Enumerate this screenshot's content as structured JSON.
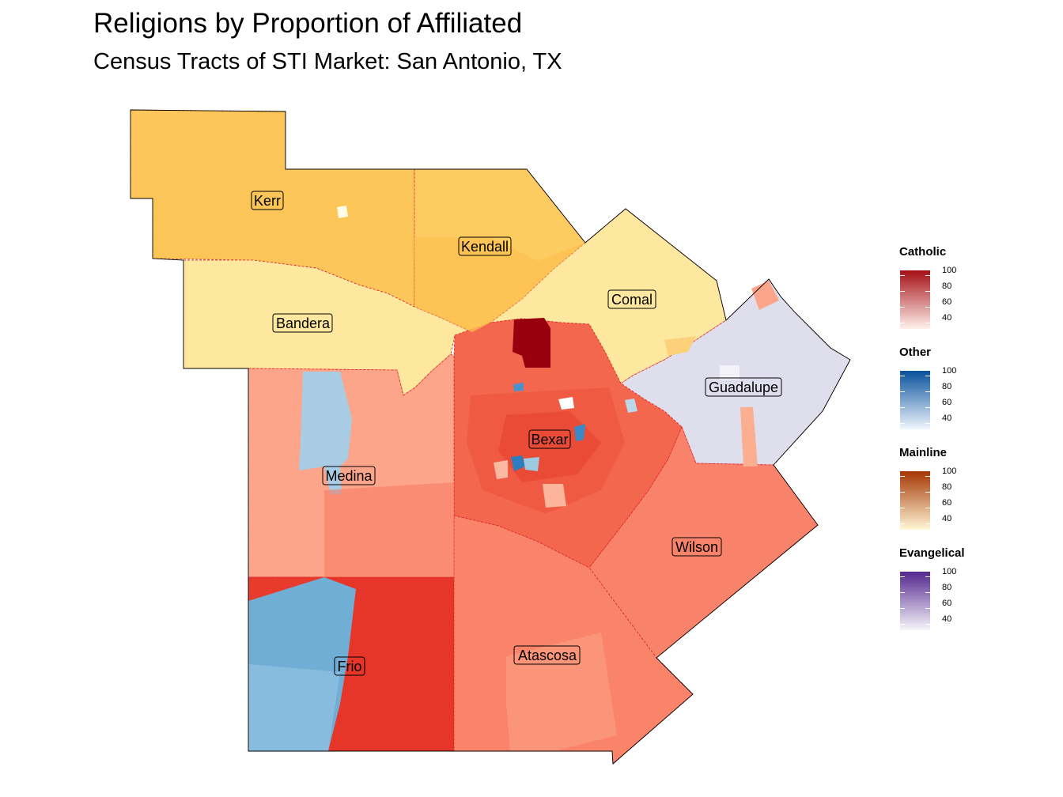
{
  "title": "Religions by Proportion of Affiliated",
  "subtitle": "Census Tracts of STI Market: San Antonio, TX",
  "counties": [
    {
      "name": "Kerr",
      "fill": "#fdc65a"
    },
    {
      "name": "Kendall",
      "fill": "#fdcc61"
    },
    {
      "name": "Bandera",
      "fill": "#fee79e"
    },
    {
      "name": "Comal",
      "fill": "#fee89f"
    },
    {
      "name": "Guadalupe",
      "fill": "#dfdeed"
    },
    {
      "name": "Bexar",
      "fill": "#f4674f"
    },
    {
      "name": "Medina",
      "fill": "#fca58a"
    },
    {
      "name": "Wilson",
      "fill": "#f9836a"
    },
    {
      "name": "Frio",
      "fill": "#e73b2c"
    },
    {
      "name": "Atascosa",
      "fill": "#f9846a"
    }
  ],
  "legend": [
    {
      "title": "Catholic",
      "color_low": "#fff1ec",
      "color_high": "#a50f15",
      "ticks": [
        "100",
        "80",
        "60",
        "40"
      ]
    },
    {
      "title": "Other",
      "color_low": "#f0f6fd",
      "color_high": "#08519c",
      "ticks": [
        "100",
        "80",
        "60",
        "40"
      ]
    },
    {
      "title": "Mainline",
      "color_low": "#fff7d6",
      "color_high": "#a63603",
      "ticks": [
        "100",
        "80",
        "60",
        "40"
      ]
    },
    {
      "title": "Evangelical",
      "color_low": "#f6f5fa",
      "color_high": "#54278f",
      "ticks": [
        "100",
        "80",
        "60",
        "40"
      ]
    }
  ]
}
